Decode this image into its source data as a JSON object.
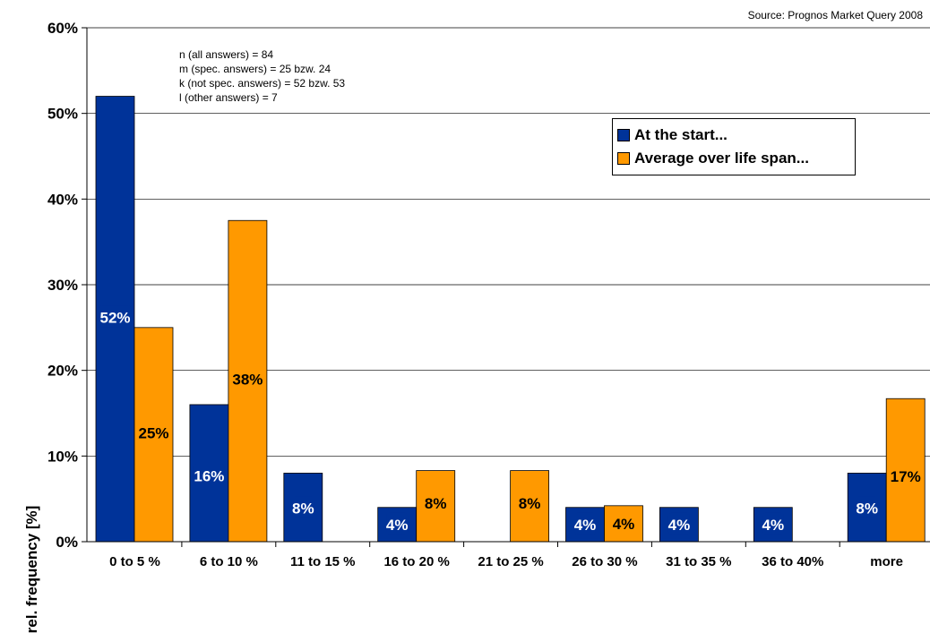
{
  "chart_data": {
    "type": "bar",
    "source_note": "Source: Prognos Market Query 2008",
    "ylabel": "rel. frequency [%]",
    "xlabel": "",
    "ylim": [
      0,
      60
    ],
    "yticks": [
      "0%",
      "10%",
      "20%",
      "30%",
      "40%",
      "50%",
      "60%"
    ],
    "grid": true,
    "legend_position": "top-right",
    "categories": [
      "0 to 5 %",
      "6 to 10 %",
      "11 to 15 %",
      "16 to 20 %",
      "21 to 25 %",
      "26 to 30 %",
      "31 to 35 %",
      "36 to 40%",
      "more"
    ],
    "series": [
      {
        "name": "At the start...",
        "color": "#003399",
        "values": [
          52,
          16,
          8,
          4,
          0,
          4,
          4,
          4,
          8
        ],
        "labels": [
          "52%",
          "16%",
          "8%",
          "4%",
          "",
          "4%",
          "4%",
          "4%",
          "8%"
        ]
      },
      {
        "name": "Average over life span...",
        "color": "#FF9900",
        "values": [
          25,
          37.5,
          0,
          8.3,
          8.3,
          4.2,
          0,
          0,
          16.7
        ],
        "labels": [
          "25%",
          "38%",
          "",
          "8%",
          "8%",
          "4%",
          "",
          "",
          "17%"
        ]
      }
    ],
    "annotations": [
      "n (all answers) = 84",
      "m (spec. answers) = 25 bzw. 24",
      "k (not spec. answers) = 52 bzw. 53",
      "l (other answers) = 7"
    ]
  }
}
